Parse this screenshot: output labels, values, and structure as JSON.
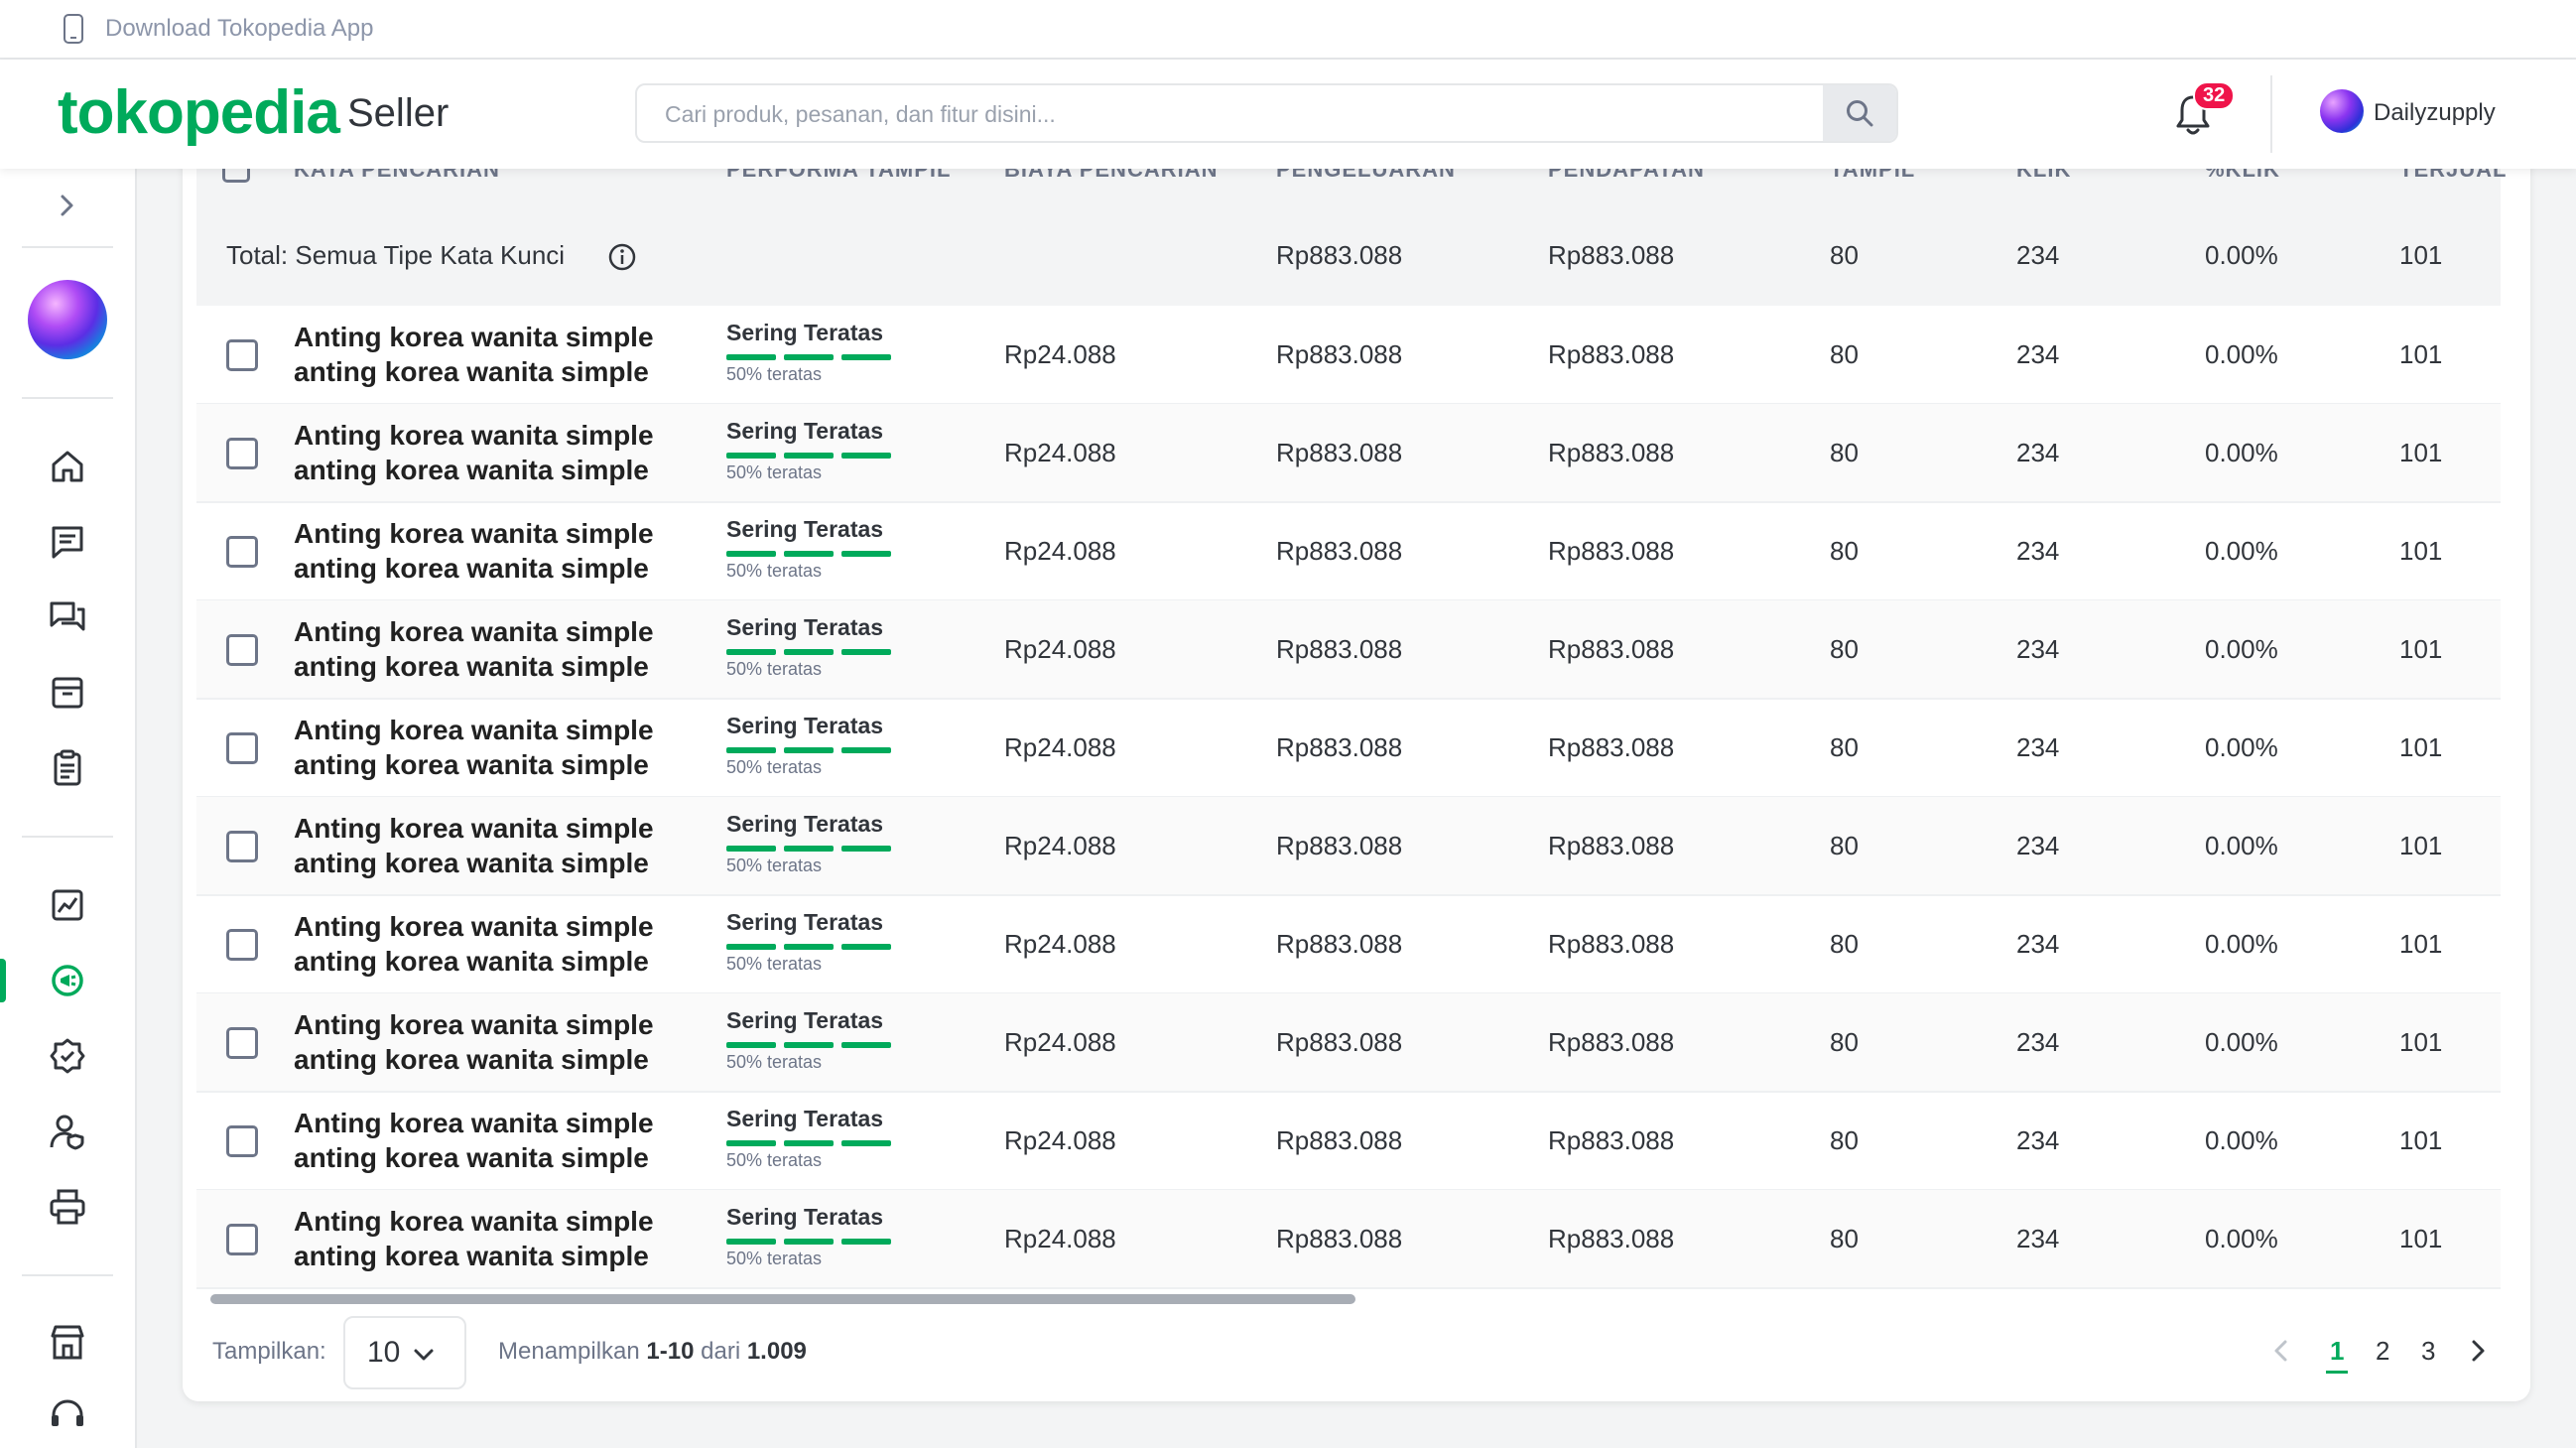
{
  "topbar": {
    "download_app": "Download Tokopedia App"
  },
  "header": {
    "logo": "tokopedia",
    "logo_suffix": "Seller",
    "search_placeholder": "Cari produk, pesanan, dan fitur disini...",
    "notification_count": "32",
    "username": "Dailyzupply"
  },
  "colors": {
    "brand": "#00aa5b",
    "badge": "#ef144a"
  },
  "sidebar": {
    "icons": [
      "chevron-right-icon",
      "home-icon",
      "chat-icon",
      "discussion-icon",
      "product-box-icon",
      "order-list-icon",
      "statistics-icon",
      "ads-icon",
      "badge-icon",
      "user-shield-icon",
      "print-icon",
      "shop-icon",
      "headset-icon"
    ],
    "active_item": "ads-icon"
  },
  "table": {
    "columns": [
      "KATA PENCARIAN",
      "PERFORMA TAMPIL",
      "BIAYA PENCARIAN",
      "PENGELUARAN",
      "PENDAPATAN",
      "TAMPIL",
      "KLIK",
      "%KLIK",
      "TERJUAL"
    ],
    "total": {
      "label": "Total: Semua Tipe Kata Kunci",
      "pengeluaran": "Rp883.088",
      "pendapatan": "Rp883.088",
      "tampil": "80",
      "klik": "234",
      "persen_klik": "0.00%",
      "terjual": "101"
    },
    "rows": [
      {
        "kw1": "Anting korea wanita simple",
        "kw2": "anting korea wanita simple",
        "perf": "Sering Teratas",
        "perf_sub": "50% teratas",
        "biaya": "Rp24.088",
        "pengeluaran": "Rp883.088",
        "pendapatan": "Rp883.088",
        "tampil": "80",
        "klik": "234",
        "persen_klik": "0.00%",
        "terjual": "101"
      },
      {
        "kw1": "Anting korea wanita simple",
        "kw2": "anting korea wanita simple",
        "perf": "Sering Teratas",
        "perf_sub": "50% teratas",
        "biaya": "Rp24.088",
        "pengeluaran": "Rp883.088",
        "pendapatan": "Rp883.088",
        "tampil": "80",
        "klik": "234",
        "persen_klik": "0.00%",
        "terjual": "101"
      },
      {
        "kw1": "Anting korea wanita simple",
        "kw2": "anting korea wanita simple",
        "perf": "Sering Teratas",
        "perf_sub": "50% teratas",
        "biaya": "Rp24.088",
        "pengeluaran": "Rp883.088",
        "pendapatan": "Rp883.088",
        "tampil": "80",
        "klik": "234",
        "persen_klik": "0.00%",
        "terjual": "101"
      },
      {
        "kw1": "Anting korea wanita simple",
        "kw2": "anting korea wanita simple",
        "perf": "Sering Teratas",
        "perf_sub": "50% teratas",
        "biaya": "Rp24.088",
        "pengeluaran": "Rp883.088",
        "pendapatan": "Rp883.088",
        "tampil": "80",
        "klik": "234",
        "persen_klik": "0.00%",
        "terjual": "101"
      },
      {
        "kw1": "Anting korea wanita simple",
        "kw2": "anting korea wanita simple",
        "perf": "Sering Teratas",
        "perf_sub": "50% teratas",
        "biaya": "Rp24.088",
        "pengeluaran": "Rp883.088",
        "pendapatan": "Rp883.088",
        "tampil": "80",
        "klik": "234",
        "persen_klik": "0.00%",
        "terjual": "101"
      },
      {
        "kw1": "Anting korea wanita simple",
        "kw2": "anting korea wanita simple",
        "perf": "Sering Teratas",
        "perf_sub": "50% teratas",
        "biaya": "Rp24.088",
        "pengeluaran": "Rp883.088",
        "pendapatan": "Rp883.088",
        "tampil": "80",
        "klik": "234",
        "persen_klik": "0.00%",
        "terjual": "101"
      },
      {
        "kw1": "Anting korea wanita simple",
        "kw2": "anting korea wanita simple",
        "perf": "Sering Teratas",
        "perf_sub": "50% teratas",
        "biaya": "Rp24.088",
        "pengeluaran": "Rp883.088",
        "pendapatan": "Rp883.088",
        "tampil": "80",
        "klik": "234",
        "persen_klik": "0.00%",
        "terjual": "101"
      },
      {
        "kw1": "Anting korea wanita simple",
        "kw2": "anting korea wanita simple",
        "perf": "Sering Teratas",
        "perf_sub": "50% teratas",
        "biaya": "Rp24.088",
        "pengeluaran": "Rp883.088",
        "pendapatan": "Rp883.088",
        "tampil": "80",
        "klik": "234",
        "persen_klik": "0.00%",
        "terjual": "101"
      },
      {
        "kw1": "Anting korea wanita simple",
        "kw2": "anting korea wanita simple",
        "perf": "Sering Teratas",
        "perf_sub": "50% teratas",
        "biaya": "Rp24.088",
        "pengeluaran": "Rp883.088",
        "pendapatan": "Rp883.088",
        "tampil": "80",
        "klik": "234",
        "persen_klik": "0.00%",
        "terjual": "101"
      },
      {
        "kw1": "Anting korea wanita simple",
        "kw2": "anting korea wanita simple",
        "perf": "Sering Teratas",
        "perf_sub": "50% teratas",
        "biaya": "Rp24.088",
        "pengeluaran": "Rp883.088",
        "pendapatan": "Rp883.088",
        "tampil": "80",
        "klik": "234",
        "persen_klik": "0.00%",
        "terjual": "101"
      }
    ]
  },
  "footer": {
    "show_label": "Tampilkan:",
    "page_size": "10",
    "info_prefix": "Menampilkan",
    "info_range": "1-10",
    "info_mid": "dari",
    "info_total": "1.009",
    "pages": [
      "1",
      "2",
      "3"
    ],
    "current_page": "1"
  }
}
